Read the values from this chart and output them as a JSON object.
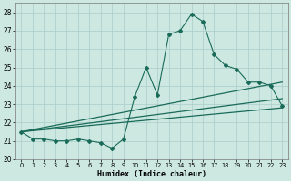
{
  "xlabel": "Humidex (Indice chaleur)",
  "bg_color": "#cce8e0",
  "grid_color": "#aacccc",
  "line_color": "#1a6b5a",
  "xlim": [
    -0.5,
    23.5
  ],
  "ylim": [
    20.0,
    28.5
  ],
  "yticks": [
    20,
    21,
    22,
    23,
    24,
    25,
    26,
    27,
    28
  ],
  "xticks": [
    0,
    1,
    2,
    3,
    4,
    5,
    6,
    7,
    8,
    9,
    10,
    11,
    12,
    13,
    14,
    15,
    16,
    17,
    18,
    19,
    20,
    21,
    22,
    23
  ],
  "main_series": {
    "x": [
      0,
      1,
      2,
      3,
      4,
      5,
      6,
      7,
      8,
      9,
      10,
      11,
      12,
      13,
      14,
      15,
      16,
      17,
      18,
      19,
      20,
      21,
      22,
      23
    ],
    "y": [
      21.5,
      21.1,
      21.1,
      21.0,
      21.0,
      21.1,
      21.0,
      20.9,
      20.6,
      21.1,
      23.4,
      25.0,
      23.5,
      26.8,
      27.0,
      27.9,
      27.5,
      25.7,
      25.1,
      24.9,
      24.2,
      24.2,
      24.0,
      22.9
    ]
  },
  "straight_lines": [
    {
      "x0": 0,
      "y0": 21.5,
      "x1": 23,
      "y1": 22.8
    },
    {
      "x0": 0,
      "y0": 21.5,
      "x1": 23,
      "y1": 23.3
    },
    {
      "x0": 0,
      "y0": 21.5,
      "x1": 23,
      "y1": 24.2
    }
  ]
}
